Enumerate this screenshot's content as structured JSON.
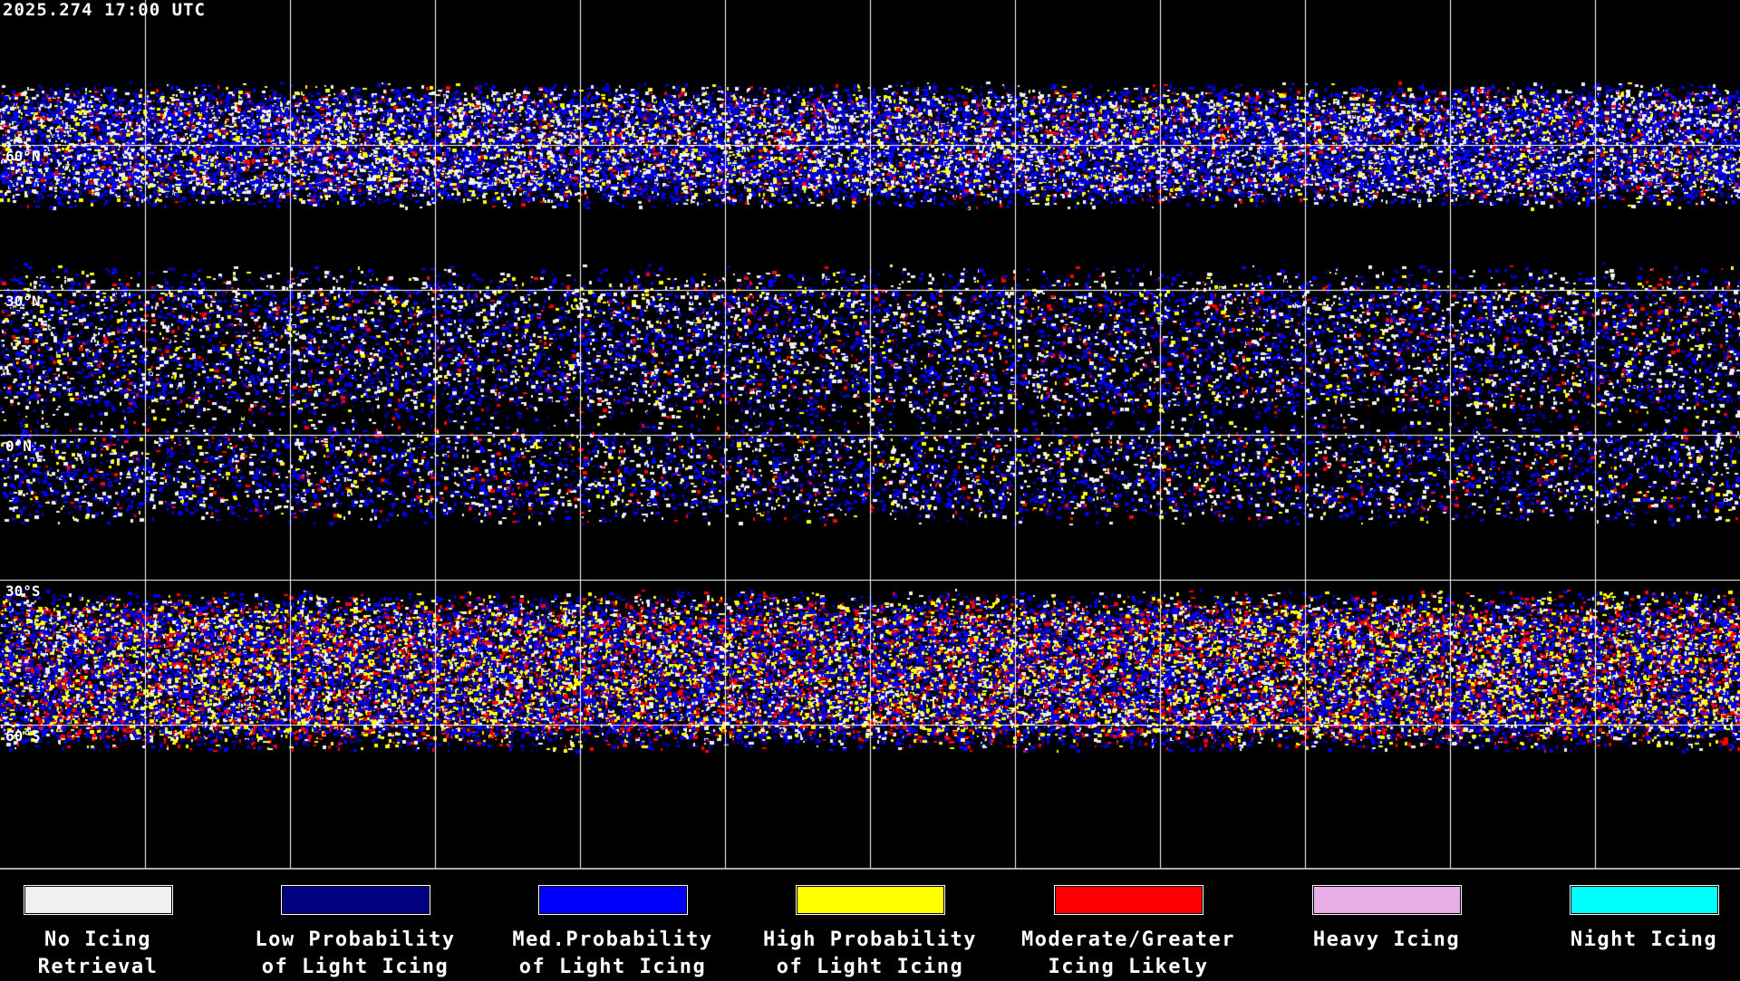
{
  "timestamp": "2025.274 17:00 UTC",
  "latitude_labels": [
    "60°N",
    "30°N",
    "0°N",
    "30°S",
    "60°S"
  ],
  "grid": {
    "lon_step_deg": 30,
    "lat_step_deg": 30,
    "color": "#ffffff"
  },
  "legend": [
    {
      "line1": "No Icing",
      "line2": "Retrieval",
      "color": "#f0f0f0"
    },
    {
      "line1": "Low Probability",
      "line2": "of Light Icing",
      "color": "#000080"
    },
    {
      "line1": "Med.Probability",
      "line2": "of Light Icing",
      "color": "#0000ff"
    },
    {
      "line1": "High Probability",
      "line2": "of Light Icing",
      "color": "#ffff00"
    },
    {
      "line1": "Moderate/Greater",
      "line2": "Icing Likely",
      "color": "#ff0000"
    },
    {
      "line1": "Heavy Icing",
      "line2": "",
      "color": "#e8aee8"
    },
    {
      "line1": "Night Icing",
      "line2": "",
      "color": "#00ffff"
    }
  ]
}
